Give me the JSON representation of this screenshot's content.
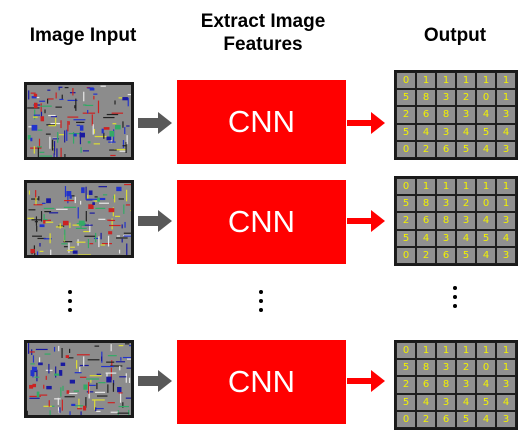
{
  "headers": {
    "input": "Image Input",
    "extract_line1": "Extract Image",
    "extract_line2": "Features",
    "output": "Output"
  },
  "rows": [
    {
      "cnn_label": "CNN",
      "grid": [
        [
          "0",
          "1",
          "1",
          "1",
          "1",
          "1"
        ],
        [
          "5",
          "8",
          "3",
          "2",
          "0",
          "1"
        ],
        [
          "2",
          "6",
          "8",
          "3",
          "4",
          "3"
        ],
        [
          "5",
          "4",
          "3",
          "4",
          "5",
          "4"
        ],
        [
          "0",
          "2",
          "6",
          "5",
          "4",
          "3"
        ]
      ]
    },
    {
      "cnn_label": "CNN",
      "grid": [
        [
          "0",
          "1",
          "1",
          "1",
          "1",
          "1"
        ],
        [
          "5",
          "8",
          "3",
          "2",
          "0",
          "1"
        ],
        [
          "2",
          "6",
          "8",
          "3",
          "4",
          "3"
        ],
        [
          "5",
          "4",
          "3",
          "4",
          "5",
          "4"
        ],
        [
          "0",
          "2",
          "6",
          "5",
          "4",
          "3"
        ]
      ]
    },
    {
      "cnn_label": "CNN",
      "grid": [
        [
          "0",
          "1",
          "1",
          "1",
          "1",
          "1"
        ],
        [
          "5",
          "8",
          "3",
          "2",
          "0",
          "1"
        ],
        [
          "2",
          "6",
          "8",
          "3",
          "4",
          "3"
        ],
        [
          "5",
          "4",
          "3",
          "4",
          "5",
          "4"
        ],
        [
          "0",
          "2",
          "6",
          "5",
          "4",
          "3"
        ]
      ]
    }
  ],
  "colors": {
    "cnn_box": "#ff0000",
    "grid_text": "#f2f200",
    "gray_arrow": "#595959",
    "red_arrow": "#ff0000"
  }
}
